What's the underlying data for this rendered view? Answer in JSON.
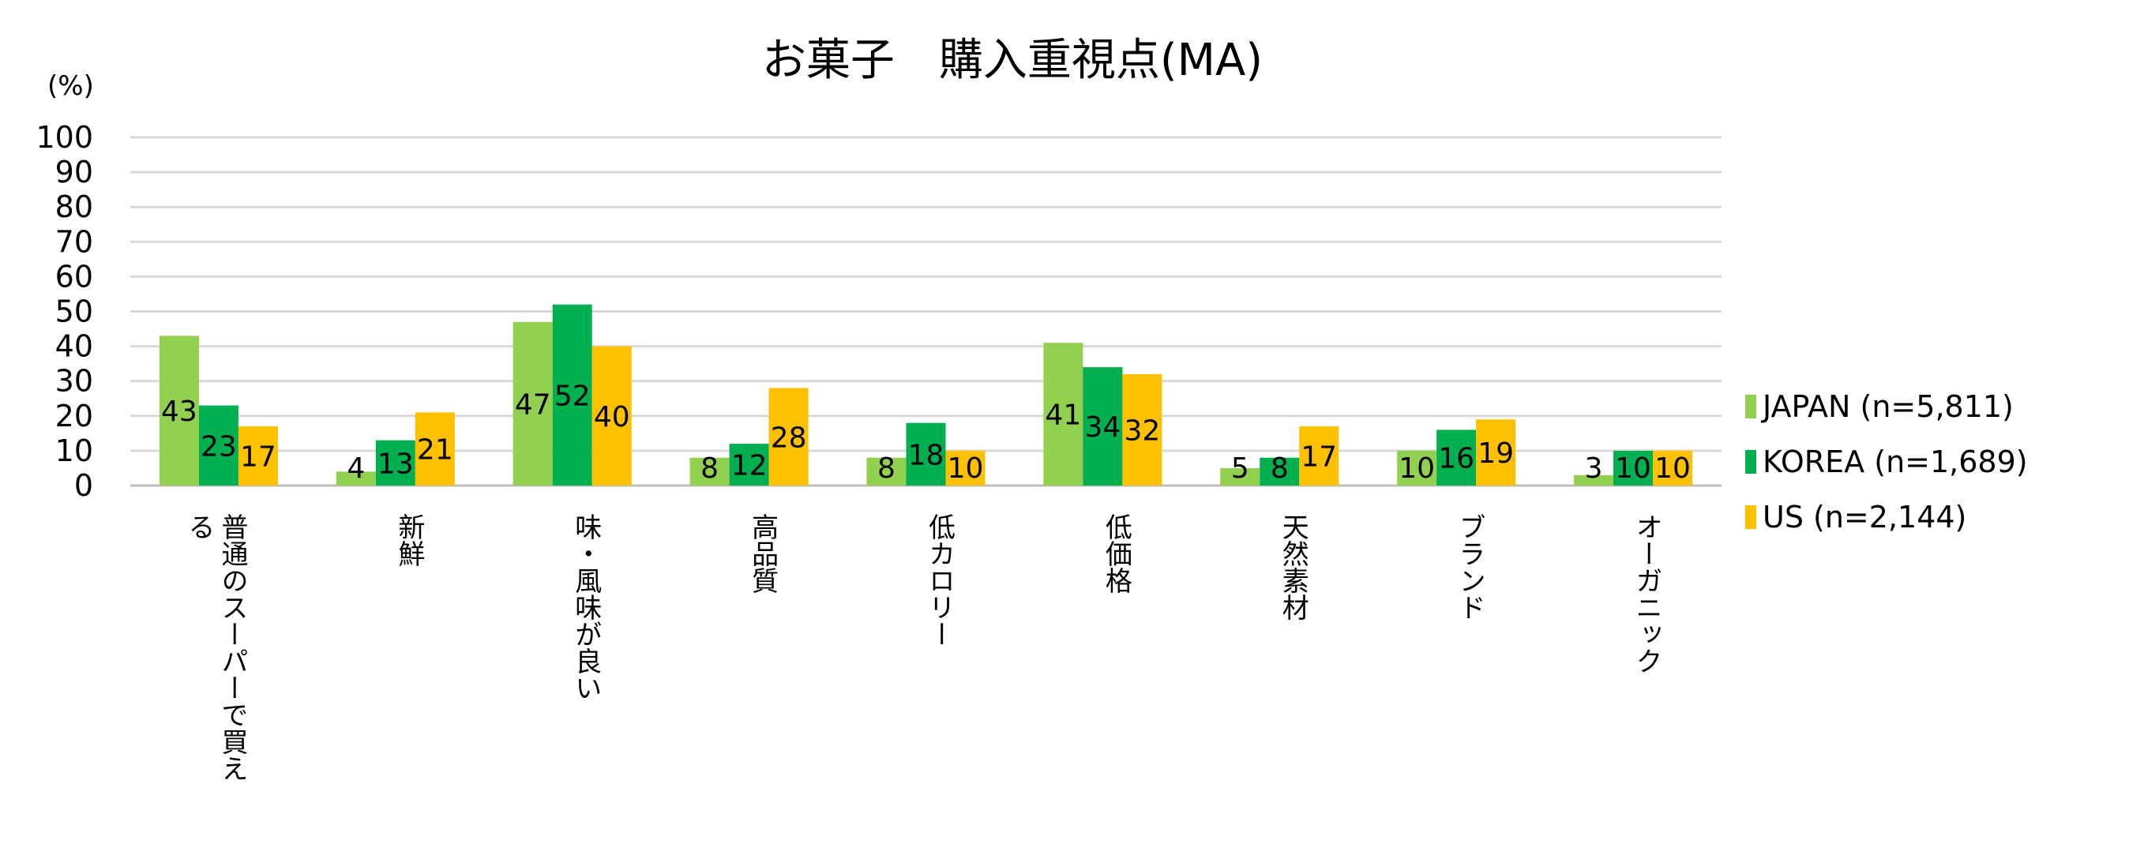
{
  "chart_data": {
    "type": "bar",
    "title": "お菓子　購入重視点(MA)",
    "ylabel": "(%)",
    "xlabel": "",
    "ylim": [
      0,
      100
    ],
    "yticks": [
      0,
      10,
      20,
      30,
      40,
      50,
      60,
      70,
      80,
      90,
      100
    ],
    "grid": true,
    "legend_position": "right",
    "categories": [
      "普通のスーパーで買える",
      "新鮮",
      "味・風味が良い",
      "高品質",
      "低カロリー",
      "低価格",
      "天然素材",
      "ブランド",
      "オーガニック"
    ],
    "series": [
      {
        "name": "JAPAN (n=5,811)",
        "color": "#92D050",
        "values": [
          43,
          4,
          47,
          8,
          8,
          41,
          5,
          10,
          3
        ]
      },
      {
        "name": "KOREA (n=1,689)",
        "color": "#00B050",
        "values": [
          23,
          13,
          52,
          12,
          18,
          34,
          8,
          16,
          10
        ]
      },
      {
        "name": "US (n=2,144)",
        "color": "#FFC000",
        "values": [
          17,
          21,
          40,
          28,
          10,
          32,
          17,
          19,
          10
        ]
      }
    ]
  }
}
